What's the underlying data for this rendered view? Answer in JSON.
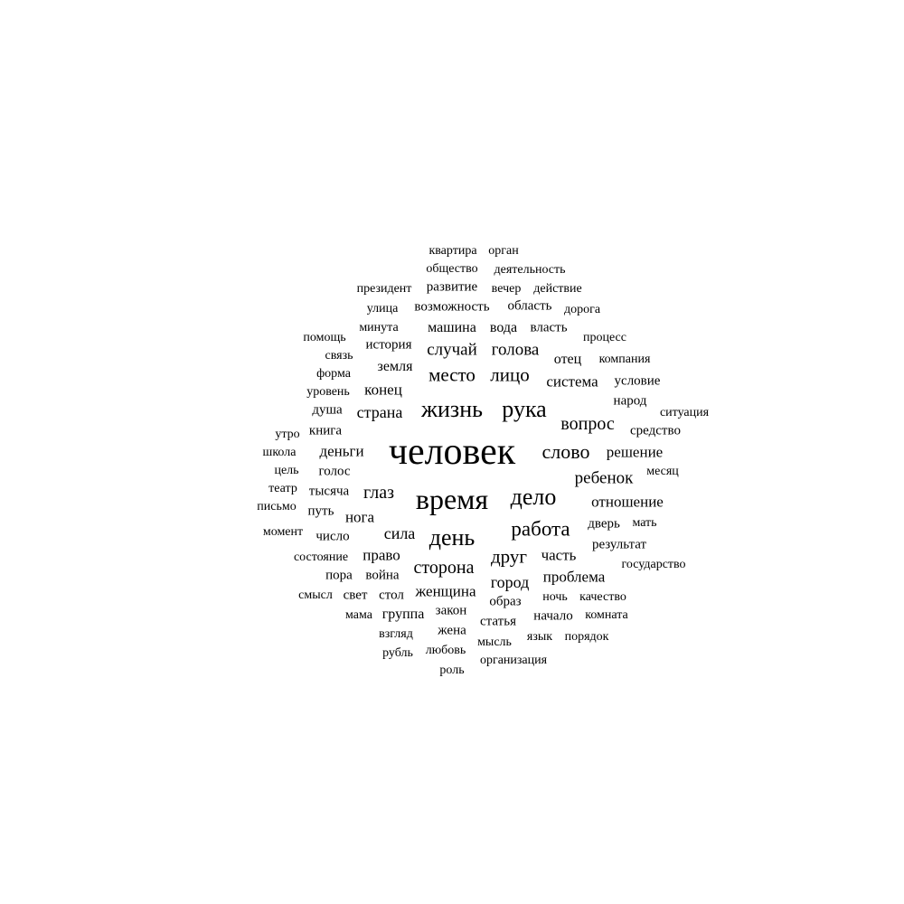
{
  "text_color": "#000000",
  "background_color": "#ffffff",
  "words": [
    "квартира",
    "орган",
    "общество",
    "деятельность",
    "президент",
    "развитие",
    "вечер",
    "действие",
    "улица",
    "возможность",
    "область",
    "дорога",
    "минута",
    "машина",
    "вода",
    "власть",
    "помощь",
    "история",
    "случай",
    "голова",
    "процесс",
    "связь",
    "отец",
    "компания",
    "форма",
    "земля",
    "место",
    "лицо",
    "система",
    "условие",
    "уровень",
    "конец",
    "народ",
    "душа",
    "страна",
    "жизнь",
    "рука",
    "ситуация",
    "вопрос",
    "утро",
    "книга",
    "средство",
    "школа",
    "деньги",
    "человек",
    "слово",
    "решение",
    "цель",
    "голос",
    "ребенок",
    "месяц",
    "театр",
    "тысяча",
    "глаз",
    "время",
    "дело",
    "отношение",
    "письмо",
    "путь",
    "нога",
    "работа",
    "дверь",
    "мать",
    "момент",
    "число",
    "сила",
    "день",
    "результат",
    "состояние",
    "право",
    "друг",
    "часть",
    "государство",
    "сторона",
    "пора",
    "война",
    "проблема",
    "город",
    "смысл",
    "свет",
    "стол",
    "женщина",
    "ночь",
    "качество",
    "образ",
    "мама",
    "группа",
    "закон",
    "начало",
    "комната",
    "статья",
    "взгляд",
    "жена",
    "мысль",
    "язык",
    "порядок",
    "рубль",
    "любовь",
    "организация",
    "роль"
  ]
}
